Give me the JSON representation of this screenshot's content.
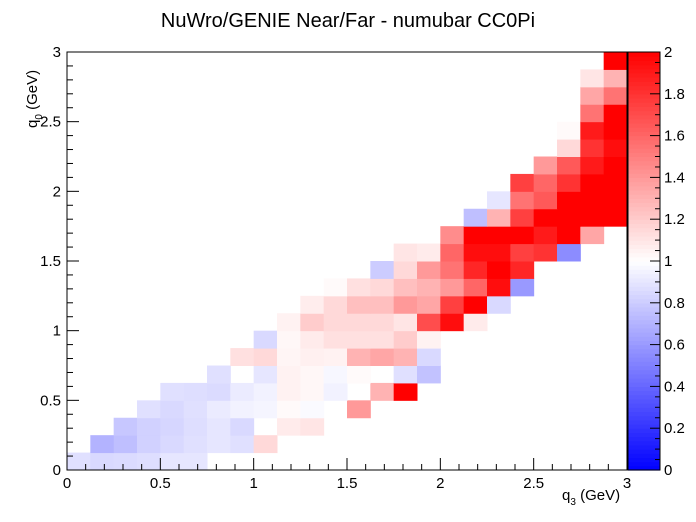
{
  "chart_data": {
    "type": "heatmap",
    "title": "NuWro/GENIE Near/Far - numubar CC0Pi",
    "xlabel": {
      "main": "q",
      "sub": "3",
      "unit": " (GeV)"
    },
    "ylabel": {
      "main": "q",
      "sub": "0",
      "unit": " (GeV)"
    },
    "xlim": [
      0,
      3
    ],
    "ylim": [
      0,
      3
    ],
    "zlim": [
      0,
      2
    ],
    "x_ticks": [
      "0",
      "0.5",
      "1",
      "1.5",
      "2",
      "2.5",
      "3"
    ],
    "y_ticks": [
      "0",
      "0.5",
      "1",
      "1.5",
      "2",
      "2.5",
      "3"
    ],
    "z_ticks": [
      "0",
      "0.2",
      "0.4",
      "0.6",
      "0.8",
      "1",
      "1.2",
      "1.4",
      "1.6",
      "1.8",
      "2"
    ],
    "colormap": {
      "low": "#0000ff",
      "mid": "#ffffff",
      "high": "#ff0000"
    },
    "bins": {
      "nx": 24,
      "ny": 24,
      "bin_width": 0.125
    },
    "values_by_row_from_q0_0": [
      [
        0.88,
        0.85,
        0.86,
        0.87,
        0.9,
        0.9,
        null,
        null,
        null,
        null,
        null,
        null,
        null,
        null,
        null,
        null,
        null,
        null,
        null,
        null,
        null,
        null,
        null,
        null
      ],
      [
        null,
        0.7,
        0.75,
        0.82,
        0.85,
        0.88,
        0.9,
        0.88,
        1.15,
        null,
        null,
        null,
        null,
        null,
        null,
        null,
        null,
        null,
        null,
        null,
        null,
        null,
        null,
        null
      ],
      [
        null,
        null,
        0.78,
        0.82,
        0.84,
        0.87,
        0.9,
        0.85,
        null,
        1.08,
        1.1,
        null,
        null,
        null,
        null,
        null,
        null,
        null,
        null,
        null,
        null,
        null,
        null,
        null
      ],
      [
        null,
        null,
        null,
        0.88,
        0.85,
        0.88,
        0.92,
        0.95,
        0.96,
        1.02,
        0.98,
        null,
        1.4,
        null,
        null,
        null,
        null,
        null,
        null,
        null,
        null,
        null,
        null,
        null
      ],
      [
        null,
        null,
        null,
        null,
        0.88,
        0.87,
        0.86,
        0.92,
        0.95,
        1.05,
        1.03,
        0.95,
        null,
        1.3,
        2.0,
        null,
        null,
        null,
        null,
        null,
        null,
        null,
        null,
        null
      ],
      [
        null,
        null,
        null,
        null,
        null,
        null,
        0.88,
        null,
        0.9,
        1.05,
        1.03,
        0.97,
        1.02,
        null,
        0.88,
        0.76,
        null,
        null,
        null,
        null,
        null,
        null,
        null,
        null
      ],
      [
        null,
        null,
        null,
        null,
        null,
        null,
        null,
        1.12,
        1.15,
        1.04,
        1.06,
        1.05,
        1.3,
        1.35,
        1.3,
        0.85,
        null,
        null,
        null,
        null,
        null,
        null,
        null,
        null
      ],
      [
        null,
        null,
        null,
        null,
        null,
        null,
        null,
        null,
        0.85,
        1.03,
        1.08,
        1.12,
        1.12,
        1.12,
        1.2,
        1.05,
        null,
        null,
        null,
        null,
        null,
        null,
        null,
        null
      ],
      [
        null,
        null,
        null,
        null,
        null,
        null,
        null,
        null,
        null,
        1.05,
        1.2,
        1.15,
        1.15,
        1.15,
        1.1,
        1.7,
        1.95,
        1.08,
        null,
        null,
        null,
        null,
        null,
        null
      ],
      [
        null,
        null,
        null,
        null,
        null,
        null,
        null,
        null,
        null,
        null,
        1.07,
        1.15,
        1.25,
        1.25,
        1.4,
        1.35,
        1.75,
        2.0,
        0.85,
        null,
        null,
        null,
        null,
        null
      ],
      [
        null,
        null,
        null,
        null,
        null,
        null,
        null,
        null,
        null,
        null,
        null,
        1.02,
        1.12,
        1.15,
        1.25,
        1.3,
        1.4,
        1.6,
        1.95,
        0.6,
        null,
        null,
        null,
        null
      ],
      [
        null,
        null,
        null,
        null,
        null,
        null,
        null,
        null,
        null,
        null,
        null,
        null,
        null,
        0.8,
        1.15,
        1.4,
        1.55,
        1.85,
        2.0,
        1.85,
        null,
        null,
        null,
        null
      ],
      [
        null,
        null,
        null,
        null,
        null,
        null,
        null,
        null,
        null,
        null,
        null,
        null,
        null,
        null,
        1.1,
        1.08,
        1.6,
        1.95,
        1.95,
        1.75,
        1.8,
        0.55,
        null,
        null
      ],
      [
        null,
        null,
        null,
        null,
        null,
        null,
        null,
        null,
        null,
        null,
        null,
        null,
        null,
        null,
        null,
        null,
        1.45,
        2.0,
        2.0,
        2.0,
        1.9,
        2.0,
        1.35,
        null
      ],
      [
        null,
        null,
        null,
        null,
        null,
        null,
        null,
        null,
        null,
        null,
        null,
        null,
        null,
        null,
        null,
        null,
        null,
        0.75,
        1.3,
        1.75,
        2.0,
        2.0,
        2.0,
        2.0
      ],
      [
        null,
        null,
        null,
        null,
        null,
        null,
        null,
        null,
        null,
        null,
        null,
        null,
        null,
        null,
        null,
        null,
        null,
        null,
        0.9,
        1.55,
        1.65,
        2.0,
        2.0,
        2.0
      ],
      [
        null,
        null,
        null,
        null,
        null,
        null,
        null,
        null,
        null,
        null,
        null,
        null,
        null,
        null,
        null,
        null,
        null,
        null,
        null,
        1.75,
        1.6,
        1.8,
        2.0,
        2.0
      ],
      [
        null,
        null,
        null,
        null,
        null,
        null,
        null,
        null,
        null,
        null,
        null,
        null,
        null,
        null,
        null,
        null,
        null,
        null,
        null,
        null,
        1.4,
        1.65,
        1.9,
        2.0
      ],
      [
        null,
        null,
        null,
        null,
        null,
        null,
        null,
        null,
        null,
        null,
        null,
        null,
        null,
        null,
        null,
        null,
        null,
        null,
        null,
        null,
        null,
        1.15,
        1.8,
        1.95
      ],
      [
        null,
        null,
        null,
        null,
        null,
        null,
        null,
        null,
        null,
        null,
        null,
        null,
        null,
        null,
        null,
        null,
        null,
        null,
        null,
        null,
        null,
        1.02,
        1.9,
        2.0
      ],
      [
        null,
        null,
        null,
        null,
        null,
        null,
        null,
        null,
        null,
        null,
        null,
        null,
        null,
        null,
        null,
        null,
        null,
        null,
        null,
        null,
        null,
        null,
        1.55,
        2.0
      ],
      [
        null,
        null,
        null,
        null,
        null,
        null,
        null,
        null,
        null,
        null,
        null,
        null,
        null,
        null,
        null,
        null,
        null,
        null,
        null,
        null,
        null,
        null,
        1.35,
        1.55
      ],
      [
        null,
        null,
        null,
        null,
        null,
        null,
        null,
        null,
        null,
        null,
        null,
        null,
        null,
        null,
        null,
        null,
        null,
        null,
        null,
        null,
        null,
        null,
        1.1,
        1.3
      ],
      [
        null,
        null,
        null,
        null,
        null,
        null,
        null,
        null,
        null,
        null,
        null,
        null,
        null,
        null,
        null,
        null,
        null,
        null,
        null,
        null,
        null,
        null,
        null,
        2.0
      ]
    ]
  }
}
